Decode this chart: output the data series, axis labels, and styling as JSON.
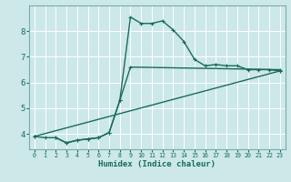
{
  "background_color": "#cce8e8",
  "grid_color": "#ffffff",
  "line_color": "#1a6b5a",
  "xlabel": "Humidex (Indice chaleur)",
  "xlim": [
    -0.5,
    23.5
  ],
  "ylim": [
    3.4,
    9.0
  ],
  "yticks": [
    4,
    5,
    6,
    7,
    8
  ],
  "xticks": [
    0,
    1,
    2,
    3,
    4,
    5,
    6,
    7,
    8,
    9,
    10,
    11,
    12,
    13,
    14,
    15,
    16,
    17,
    18,
    19,
    20,
    21,
    22,
    23
  ],
  "curve1_x": [
    0,
    1,
    2,
    3,
    4,
    5,
    6,
    7,
    8,
    9,
    10,
    11,
    12,
    13,
    14,
    15,
    16,
    17,
    18,
    19,
    20,
    21,
    22,
    23
  ],
  "curve1_y": [
    3.9,
    3.85,
    3.85,
    3.65,
    3.75,
    3.8,
    3.85,
    4.05,
    5.3,
    8.55,
    8.3,
    8.3,
    8.4,
    8.05,
    7.6,
    6.9,
    6.65,
    6.7,
    6.65,
    6.65,
    6.5,
    6.5,
    6.5,
    6.45
  ],
  "curve2_x": [
    2,
    3,
    4,
    5,
    6,
    7,
    8,
    9,
    23
  ],
  "curve2_y": [
    3.85,
    3.65,
    3.75,
    3.8,
    3.85,
    4.05,
    5.3,
    6.6,
    6.5
  ],
  "curve3_x": [
    0,
    23
  ],
  "curve3_y": [
    3.9,
    6.45
  ],
  "marker_size": 2.5,
  "line_width": 1.0
}
